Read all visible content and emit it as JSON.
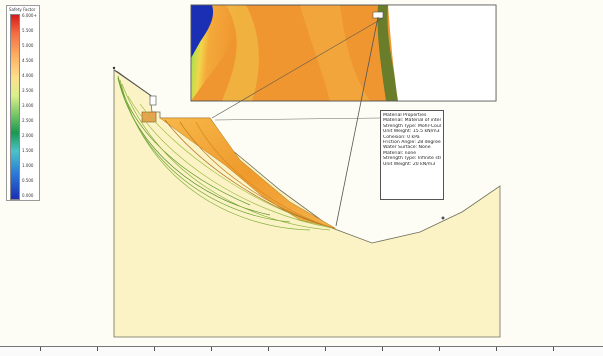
{
  "legend": {
    "title": "Safety Factor",
    "labels": [
      "0.000",
      "0.500",
      "1.000",
      "1.500",
      "2.000",
      "2.500",
      "3.000",
      "3.500",
      "4.000",
      "4.500",
      "5.000",
      "5.500",
      "6.000+"
    ]
  },
  "material_properties": {
    "lines": [
      "Material Properties",
      "Material: Material of interface",
      "Strength Type: Mohr-Coulomb",
      "Unit Weight: 15.5 kN/m3",
      "Cohesion: 0 kPa",
      "Friction Angle: 28 degrees",
      "Water Surface: None",
      "Material: none",
      "Strength Type: Infinite strength",
      "Unit Weight: 20 kN/m3"
    ]
  },
  "colors": {
    "slope_fill": "#fbf3c6",
    "slope_stroke": "#6f6f5a",
    "slide_orange": "#f0a236",
    "slide_green": "#6f9a22",
    "zoom_orange": "#f29d2e",
    "zoom_blue": "#1b2fb4"
  }
}
